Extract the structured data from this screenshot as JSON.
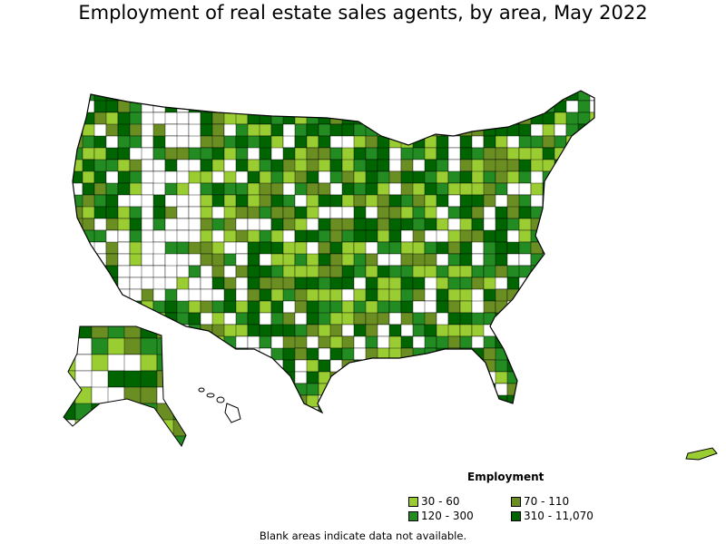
{
  "title": "Employment of real estate sales agents, by area, May 2022",
  "legend": {
    "title": "Employment",
    "items": [
      {
        "label": "30 - 60",
        "color": "#9ACD32"
      },
      {
        "label": "70 - 110",
        "color": "#6B8E23"
      },
      {
        "label": "120 - 300",
        "color": "#228B22"
      },
      {
        "label": "310 - 11,070",
        "color": "#006400"
      }
    ]
  },
  "note": "Blank areas indicate data not available."
}
